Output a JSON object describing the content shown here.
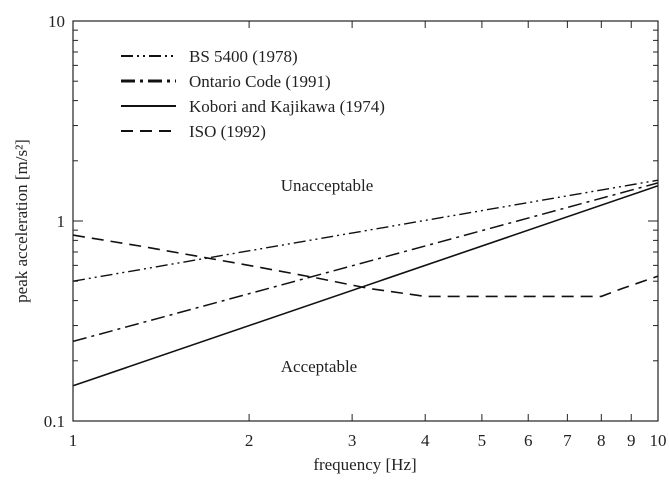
{
  "chart_data": {
    "type": "line",
    "xlabel": "frequency [Hz]",
    "ylabel": "peak acceleration [m/s²]",
    "xscale": "log",
    "yscale": "log",
    "xlim": [
      1,
      10
    ],
    "ylim": [
      0.1,
      10
    ],
    "xticks": [
      "1",
      "2",
      "3",
      "4",
      "5",
      "6",
      "7",
      "8",
      "9",
      "10"
    ],
    "yticks": [
      "0.1",
      "1",
      "10"
    ],
    "legend_position": "top-left",
    "grid": false,
    "annotations": [
      {
        "text": "Unacceptable",
        "x": 3,
        "y": 1.7
      },
      {
        "text": "Acceptable",
        "x": 3,
        "y": 0.17
      }
    ],
    "series": [
      {
        "name": "BS 5400 (1978)",
        "style": "dash-dot-dot",
        "points": [
          [
            1,
            0.5
          ],
          [
            10,
            1.6
          ]
        ]
      },
      {
        "name": "Ontario Code (1991)",
        "style": "dash-dot",
        "points": [
          [
            1,
            0.25
          ],
          [
            10,
            1.55
          ]
        ]
      },
      {
        "name": "Kobori and Kajikawa (1974)",
        "style": "solid",
        "points": [
          [
            1,
            0.15
          ],
          [
            10,
            1.5
          ]
        ]
      },
      {
        "name": "ISO (1992)",
        "style": "dashed",
        "points": [
          [
            1,
            0.85
          ],
          [
            1.3,
            0.75
          ],
          [
            2.0,
            0.6
          ],
          [
            2.6,
            0.52
          ],
          [
            3.2,
            0.46
          ],
          [
            4,
            0.42
          ],
          [
            5,
            0.42
          ],
          [
            6,
            0.42
          ],
          [
            7,
            0.42
          ],
          [
            8,
            0.42
          ],
          [
            8.7,
            0.46
          ],
          [
            10,
            0.53
          ]
        ]
      }
    ]
  }
}
